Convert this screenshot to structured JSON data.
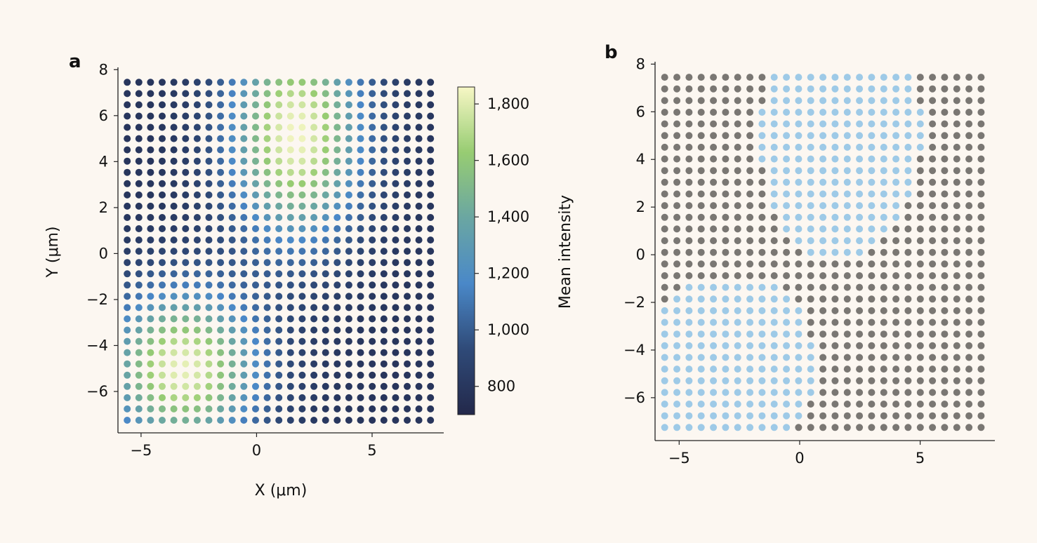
{
  "figure": {
    "background": "#fcf7f1",
    "panels": [
      {
        "label": "a"
      },
      {
        "label": "b"
      }
    ]
  },
  "chart_data": [
    {
      "type": "scatter",
      "panel": "a",
      "description_of_encoding": "color",
      "x_start": -5.6,
      "x_step": 0.505,
      "x_count": 27,
      "y_start": -7.25,
      "y_step": 0.49,
      "y_count": 31,
      "xlabel": "X (μm)",
      "ylabel": "Y (μm)",
      "xticks": [
        -5,
        0,
        5
      ],
      "xtick_labels": [
        "−5",
        "0",
        "5"
      ],
      "yticks": [
        -6,
        -4,
        -2,
        0,
        2,
        4,
        6,
        8
      ],
      "ytick_labels": [
        "−6",
        "−4",
        "−2",
        "0",
        "2",
        "4",
        "6",
        "8"
      ],
      "xlim": [
        -6,
        8.1
      ],
      "ylim": [
        -7.8,
        8.1
      ],
      "color_field": {
        "base": 790,
        "scale_x": 0.9,
        "peaks": [
          {
            "x": 1.7,
            "y": 5.2,
            "amplitude": 1060,
            "sigma_x": 2.0,
            "sigma_y": 3.2
          },
          {
            "x": -3.2,
            "y": -5.0,
            "amplitude": 1030,
            "sigma_x": 2.3,
            "sigma_y": 2.4
          }
        ]
      },
      "colorbar": {
        "label": "Mean intensity",
        "range": [
          700,
          1860
        ],
        "ticks": [
          800,
          1000,
          1200,
          1400,
          1600,
          1800
        ],
        "tick_labels": [
          "800",
          "1,000",
          "1,200",
          "1,400",
          "1,600",
          "1,800"
        ],
        "colormap": [
          "#23284a",
          "#2f4a78",
          "#4a88c8",
          "#6aa6a2",
          "#97cc72",
          "#f7f7c5"
        ]
      }
    },
    {
      "type": "scatter",
      "panel": "b",
      "description_of_encoding": "binary class",
      "x_start": -5.6,
      "x_step": 0.505,
      "x_count": 27,
      "y_start": -7.25,
      "y_step": 0.49,
      "y_count": 31,
      "xlabel": "",
      "ylabel": "",
      "xticks": [
        -5,
        0,
        5
      ],
      "xtick_labels": [
        "−5",
        "0",
        "5"
      ],
      "yticks": [
        -6,
        -4,
        -2,
        0,
        2,
        4,
        6,
        8
      ],
      "ytick_labels": [
        "−6",
        "−4",
        "−2",
        "0",
        "2",
        "4",
        "6",
        "8"
      ],
      "xlim": [
        -6,
        8.1
      ],
      "ylim": [
        -7.8,
        8.1
      ],
      "class_colors": {
        "inside": "#9ecae7",
        "outside": "#7a7773"
      },
      "classification": "inside when mean intensity ≥ 1050"
    }
  ]
}
